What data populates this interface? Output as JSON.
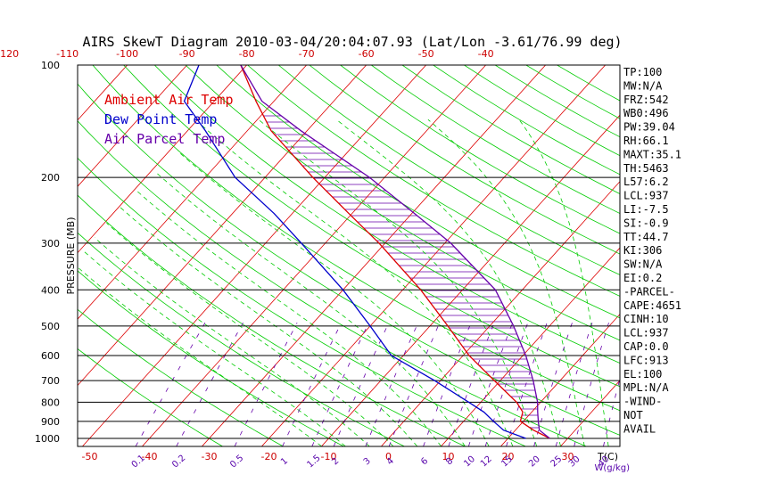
{
  "chart_data": {
    "type": "skewt",
    "title": "AIRS SkewT Diagram 2010-03-04/20:04:07.93 (Lat/Lon -3.61/76.99 deg)",
    "ylabel": "PRESSURE (MB)",
    "xlabel": "T(C)",
    "mixing_ratio_label": "W(g/kg)",
    "ylim": [
      1000,
      100
    ],
    "pressure_ticks": [
      100,
      200,
      300,
      400,
      500,
      600,
      700,
      800,
      900,
      1000
    ],
    "bottom_temp_ticks": [
      -50,
      -40,
      -30,
      -20,
      -10,
      0,
      10,
      20,
      30
    ],
    "top_temp_ticks": [
      -120,
      -110,
      -100,
      -90,
      -80,
      -70,
      -60,
      -50,
      -40
    ],
    "mixing_ratio_ticks": [
      "0.1",
      "0.2",
      "0.5",
      "1",
      "1.5",
      "2",
      "3",
      "4",
      "6",
      "8",
      "10",
      "12",
      "15",
      "20",
      "25",
      "30",
      "40"
    ],
    "legend": [
      {
        "label": "Ambient Air Temp",
        "color": "#dd0000"
      },
      {
        "label": "Dew Point Temp",
        "color": "#0000cc"
      },
      {
        "label": "Air Parcel Temp",
        "color": "#6600aa"
      }
    ],
    "series": [
      {
        "name": "Ambient Air Temp",
        "color": "#dd0000",
        "points": [
          [
            1000,
            27
          ],
          [
            950,
            23
          ],
          [
            900,
            19.5
          ],
          [
            850,
            18.5
          ],
          [
            800,
            16
          ],
          [
            700,
            9
          ],
          [
            600,
            1
          ],
          [
            500,
            -7
          ],
          [
            400,
            -17
          ],
          [
            300,
            -31
          ],
          [
            250,
            -40.5
          ],
          [
            200,
            -52
          ],
          [
            150,
            -66
          ],
          [
            125,
            -73
          ],
          [
            100,
            -81
          ]
        ]
      },
      {
        "name": "Dew Point Temp",
        "color": "#0000cc",
        "points": [
          [
            1000,
            23
          ],
          [
            950,
            18
          ],
          [
            900,
            15
          ],
          [
            850,
            12
          ],
          [
            800,
            8
          ],
          [
            700,
            -1
          ],
          [
            600,
            -12
          ],
          [
            500,
            -20
          ],
          [
            400,
            -30
          ],
          [
            300,
            -44
          ],
          [
            250,
            -53
          ],
          [
            200,
            -65
          ],
          [
            150,
            -77
          ],
          [
            125,
            -85
          ],
          [
            100,
            -88
          ]
        ]
      },
      {
        "name": "Air Parcel Temp",
        "color": "#6600aa",
        "points": [
          [
            1000,
            27
          ],
          [
            950,
            24
          ],
          [
            900,
            22.5
          ],
          [
            850,
            21
          ],
          [
            800,
            19.5
          ],
          [
            700,
            15.5
          ],
          [
            600,
            10.5
          ],
          [
            500,
            4
          ],
          [
            400,
            -4.5
          ],
          [
            300,
            -19
          ],
          [
            250,
            -29.5
          ],
          [
            200,
            -42.5
          ],
          [
            150,
            -61
          ],
          [
            125,
            -72
          ],
          [
            100,
            -81
          ]
        ]
      }
    ]
  },
  "indices": [
    "TP:100",
    "MW:N/A",
    "FRZ:542",
    "WB0:496",
    "PW:39.04",
    "RH:66.1",
    "MAXT:35.1",
    "TH:5463",
    "L57:6.2",
    "LCL:937",
    "LI:-7.5",
    "SI:-0.9",
    "TT:44.7",
    "KI:306",
    "SW:N/A",
    "EI:0.2",
    "-PARCEL-",
    "CAPE:4651",
    "CINH:10",
    "LCL:937",
    "CAP:0.0",
    "LFC:913",
    "EL:100",
    "MPL:N/A",
    "-WIND-",
    "NOT",
    "AVAIL"
  ],
  "colors": {
    "isotherm": "#dd0000",
    "dry_adiabat": "#00cc00",
    "moist_adiabat": "#00cc00",
    "mixing_ratio": "#6600aa",
    "isobar": "#000000",
    "cape_hatch": "#6600aa"
  }
}
